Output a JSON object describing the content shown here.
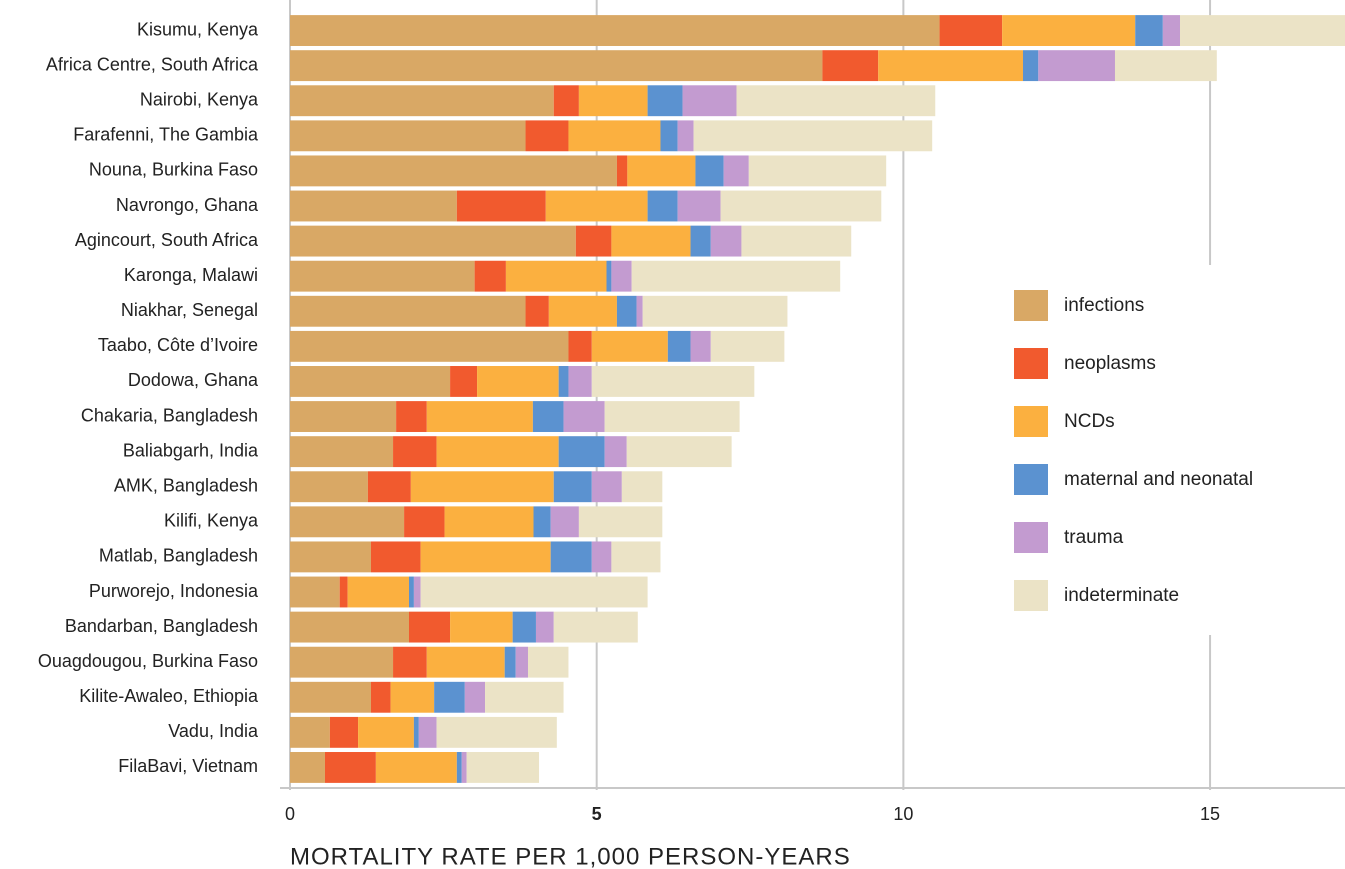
{
  "chart_data": {
    "type": "stacked_bar_horizontal",
    "categories": [
      "Kisumu, Kenya",
      "Africa Centre, South Africa",
      "Nairobi, Kenya",
      "Farafenni, The Gambia",
      "Nouna, Burkina Faso",
      "Navrongo, Ghana",
      "Agincourt, South Africa",
      "Karonga, Malawi",
      "Niakhar, Senegal",
      "Taabo, Côte d’Ivoire",
      "Dodowa, Ghana",
      "Chakaria, Bangladesh",
      "Baliabgarh, India",
      "AMK, Bangladesh",
      "Kilifi, Kenya",
      "Matlab, Bangladesh",
      "Purworejo, Indonesia",
      "Bandarban, Bangladesh",
      "Ouagdougou, Burkina Faso",
      "Kilite-Awaleo, Ethiopia",
      "Vadu, India",
      "FilaBavi, Vietnam"
    ],
    "series": [
      {
        "name": "infections",
        "color": "#d9a865",
        "values": [
          10.59,
          8.68,
          4.3,
          3.84,
          5.33,
          2.72,
          4.66,
          3.01,
          3.84,
          4.54,
          2.61,
          1.73,
          1.68,
          1.27,
          1.86,
          1.32,
          0.81,
          1.94,
          1.68,
          1.32,
          0.65,
          0.57
        ]
      },
      {
        "name": "neoplasms",
        "color": "#f15a2e",
        "values": [
          1.02,
          0.91,
          0.41,
          0.7,
          0.17,
          1.45,
          0.58,
          0.51,
          0.38,
          0.38,
          0.44,
          0.5,
          0.71,
          0.7,
          0.66,
          0.81,
          0.13,
          0.67,
          0.55,
          0.32,
          0.46,
          0.83
        ]
      },
      {
        "name": "NCDs",
        "color": "#fbb040",
        "values": [
          2.17,
          2.36,
          1.12,
          1.5,
          1.11,
          1.66,
          1.29,
          1.64,
          1.11,
          1.24,
          1.33,
          1.73,
          1.99,
          2.33,
          1.45,
          2.12,
          1.0,
          1.02,
          1.27,
          0.71,
          0.91,
          1.32
        ]
      },
      {
        "name": "maternal and neonatal",
        "color": "#5b92d0",
        "values": [
          0.45,
          0.25,
          0.57,
          0.28,
          0.46,
          0.49,
          0.33,
          0.08,
          0.32,
          0.37,
          0.16,
          0.5,
          0.75,
          0.62,
          0.28,
          0.67,
          0.08,
          0.38,
          0.18,
          0.5,
          0.08,
          0.08
        ]
      },
      {
        "name": "trauma",
        "color": "#c39bd0",
        "values": [
          0.28,
          1.25,
          0.88,
          0.26,
          0.41,
          0.7,
          0.5,
          0.33,
          0.1,
          0.33,
          0.38,
          0.67,
          0.36,
          0.49,
          0.46,
          0.32,
          0.11,
          0.29,
          0.2,
          0.33,
          0.29,
          0.08
        ]
      },
      {
        "name": "indeterminate",
        "color": "#ebe3c6",
        "values": [
          2.9,
          1.66,
          3.24,
          3.89,
          2.24,
          2.62,
          1.79,
          3.4,
          2.36,
          1.2,
          2.65,
          2.2,
          1.71,
          0.66,
          1.36,
          0.8,
          3.7,
          1.37,
          0.66,
          1.28,
          1.96,
          1.18
        ]
      }
    ],
    "xlabel": "MORTALITY RATE PER 1,000 PERSON-YEARS",
    "xlim": [
      0,
      17.2
    ],
    "xticks": [
      0,
      5,
      10,
      15
    ],
    "grid": true,
    "legend": "right"
  }
}
